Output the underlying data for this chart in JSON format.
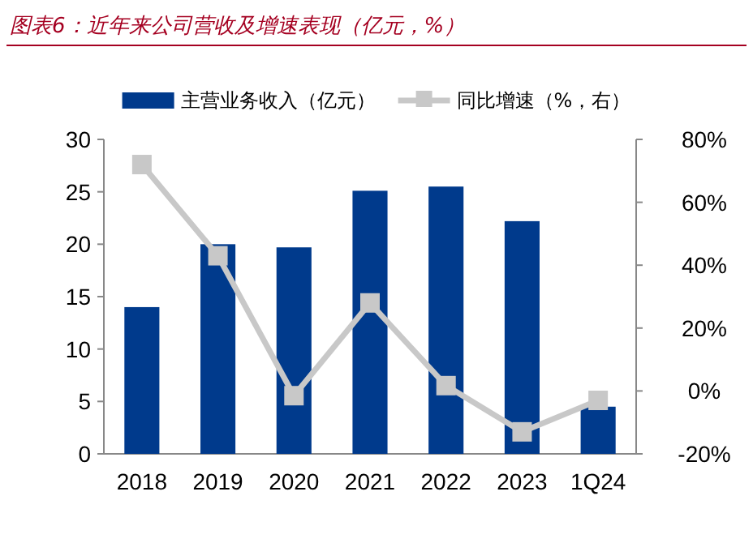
{
  "chart_data": {
    "type": "bar",
    "title": "图表6：近年来公司营收及增速表现（亿元，%）",
    "categories": [
      "2018",
      "2019",
      "2020",
      "2021",
      "2022",
      "2023",
      "1Q24"
    ],
    "series": [
      {
        "name": "主营业务收入（亿元）",
        "color": "#003a8c",
        "values": [
          14.0,
          20.0,
          19.7,
          25.1,
          25.5,
          22.2,
          4.5
        ]
      },
      {
        "name": "同比增速（%，右）",
        "type": "line",
        "axis": "y2",
        "color": "#c8c8c8",
        "marker": "square",
        "values": [
          72,
          43,
          -1.5,
          28,
          1.7,
          -13,
          -3
        ]
      }
    ],
    "ylim": [
      0,
      30
    ],
    "yticks": [
      0,
      5,
      10,
      15,
      20,
      25,
      30
    ],
    "y2lim": [
      -20,
      80
    ],
    "y2ticks": [
      {
        "value": -20,
        "label": "-20%"
      },
      {
        "value": 0,
        "label": "0%"
      },
      {
        "value": 20,
        "label": "20%"
      },
      {
        "value": 40,
        "label": "40%"
      },
      {
        "value": 60,
        "label": "60%"
      },
      {
        "value": 80,
        "label": "80%"
      }
    ],
    "legend": "top"
  }
}
